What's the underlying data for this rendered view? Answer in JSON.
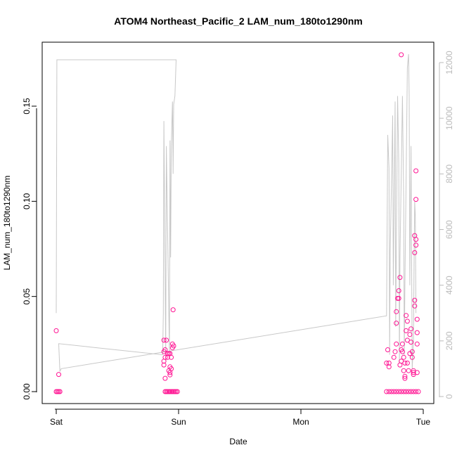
{
  "chart_data": {
    "type": "scatter",
    "title": "ATOM4 Northeast_Pacific_2 LAM_num_180to1290nm",
    "xlabel": "Date",
    "ylabel": "LAM_num_180to1290nm",
    "y2label": "",
    "x_ticks": [
      "Sat",
      "Sun",
      "Mon",
      "Tue"
    ],
    "x_tick_days": [
      0,
      1,
      2,
      3
    ],
    "xlim_days": [
      -0.15,
      3.1
    ],
    "y_ticks": [
      "0.00",
      "0.05",
      "0.10",
      "0.15"
    ],
    "y_tick_values": [
      0,
      0.05,
      0.1,
      0.15
    ],
    "ylim": [
      -0.002,
      0.182
    ],
    "y2_ticks": [
      "0",
      "2000",
      "4000",
      "6000",
      "8000",
      "10000",
      "12000"
    ],
    "y2_tick_values": [
      0,
      2000,
      4000,
      6000,
      8000,
      10000,
      12000
    ],
    "y2lim": [
      -120,
      12800
    ],
    "grid": false,
    "legend": "none",
    "colors": {
      "points": "#ff1493",
      "line": "#c8c8c8",
      "right_axis": "#bbbbbb"
    },
    "series": [
      {
        "axis": "left",
        "style": "points",
        "points": [
          [
            0.0,
            0.032
          ],
          [
            0.02,
            0.009
          ],
          [
            0.0,
            0.0
          ],
          [
            0.01,
            0.0
          ],
          [
            0.02,
            0.0
          ],
          [
            0.03,
            0.0
          ],
          [
            0.88,
            0.027
          ],
          [
            0.88,
            0.021
          ],
          [
            0.89,
            0.022
          ],
          [
            0.9,
            0.027
          ],
          [
            0.89,
            0.018
          ],
          [
            0.88,
            0.016
          ],
          [
            0.88,
            0.014
          ],
          [
            0.89,
            0.0
          ],
          [
            0.89,
            0.007
          ],
          [
            0.91,
            0.02
          ],
          [
            0.92,
            0.02
          ],
          [
            0.91,
            0.018
          ],
          [
            0.93,
            0.013
          ],
          [
            0.92,
            0.011
          ],
          [
            0.93,
            0.01
          ],
          [
            0.94,
            0.012
          ],
          [
            0.95,
            0.025
          ],
          [
            0.95,
            0.023
          ],
          [
            0.96,
            0.024
          ],
          [
            0.93,
            0.02
          ],
          [
            0.94,
            0.018
          ],
          [
            0.93,
            0.0088
          ],
          [
            0.955,
            0.043
          ],
          [
            0.9,
            0.0
          ],
          [
            0.91,
            0.0
          ],
          [
            0.92,
            0.0
          ],
          [
            0.93,
            0.0
          ],
          [
            0.94,
            0.0
          ],
          [
            0.95,
            0.0
          ],
          [
            0.96,
            0.0
          ],
          [
            0.97,
            0.0
          ],
          [
            0.98,
            0.0
          ],
          [
            0.99,
            0.0
          ],
          [
            2.7,
            0.015
          ],
          [
            2.71,
            0.022
          ],
          [
            2.72,
            0.015
          ],
          [
            2.72,
            0.013
          ],
          [
            2.76,
            0.018
          ],
          [
            2.77,
            0.021
          ],
          [
            2.78,
            0.025
          ],
          [
            2.78,
            0.036
          ],
          [
            2.78,
            0.042
          ],
          [
            2.79,
            0.049
          ],
          [
            2.8,
            0.049
          ],
          [
            2.8,
            0.053
          ],
          [
            2.81,
            0.06
          ],
          [
            2.81,
            0.014
          ],
          [
            2.82,
            0.016
          ],
          [
            2.82,
            0.022
          ],
          [
            2.83,
            0.025
          ],
          [
            2.83,
            0.021
          ],
          [
            2.84,
            0.018
          ],
          [
            2.84,
            0.011
          ],
          [
            2.85,
            0.008
          ],
          [
            2.85,
            0.007
          ],
          [
            2.85,
            0.015
          ],
          [
            2.86,
            0.04
          ],
          [
            2.86,
            0.032
          ],
          [
            2.87,
            0.027
          ],
          [
            2.87,
            0.037
          ],
          [
            2.87,
            0.015
          ],
          [
            2.88,
            0.011
          ],
          [
            2.89,
            0.02
          ],
          [
            2.89,
            0.03
          ],
          [
            2.9,
            0.033
          ],
          [
            2.9,
            0.026
          ],
          [
            2.91,
            0.021
          ],
          [
            2.91,
            0.018
          ],
          [
            2.92,
            0.011
          ],
          [
            2.92,
            0.009
          ],
          [
            2.92,
            0.01
          ],
          [
            2.93,
            0.048
          ],
          [
            2.93,
            0.045
          ],
          [
            2.93,
            0.073
          ],
          [
            2.94,
            0.077
          ],
          [
            2.94,
            0.08
          ],
          [
            2.93,
            0.082
          ],
          [
            2.94,
            0.101
          ],
          [
            2.94,
            0.116
          ],
          [
            2.95,
            0.038
          ],
          [
            2.95,
            0.031
          ],
          [
            2.95,
            0.025
          ],
          [
            2.95,
            0.01
          ],
          [
            2.82,
            0.177
          ],
          [
            2.7,
            0.0
          ],
          [
            2.72,
            0.0
          ],
          [
            2.74,
            0.0
          ],
          [
            2.76,
            0.0
          ],
          [
            2.78,
            0.0
          ],
          [
            2.8,
            0.0
          ],
          [
            2.82,
            0.0
          ],
          [
            2.84,
            0.0
          ],
          [
            2.86,
            0.0
          ],
          [
            2.88,
            0.0
          ],
          [
            2.9,
            0.0
          ],
          [
            2.92,
            0.0
          ],
          [
            2.94,
            0.0
          ],
          [
            2.96,
            0.0
          ]
        ]
      },
      {
        "axis": "right",
        "style": "line",
        "points": [
          [
            0.0,
            3000
          ],
          [
            0.005,
            12100
          ],
          [
            0.98,
            12100
          ],
          [
            0.97,
            10800
          ],
          [
            0.96,
            10500
          ],
          [
            0.955,
            8000
          ],
          [
            0.95,
            10600
          ],
          [
            0.94,
            9000
          ],
          [
            0.935,
            5000
          ],
          [
            0.93,
            9200
          ],
          [
            0.925,
            1500
          ],
          [
            0.9,
            9000
          ],
          [
            0.895,
            1500
          ],
          [
            0.88,
            9900
          ],
          [
            0.875,
            3000
          ],
          [
            0.87,
            1500
          ],
          [
            0.02,
            1900
          ],
          [
            0.03,
            900
          ],
          [
            0.04,
            1000
          ],
          [
            2.7,
            2900
          ],
          [
            2.71,
            9400
          ],
          [
            2.72,
            8200
          ],
          [
            2.725,
            1500
          ],
          [
            2.73,
            5200
          ],
          [
            2.75,
            10100
          ],
          [
            2.755,
            4000
          ],
          [
            2.77,
            10600
          ],
          [
            2.775,
            2500
          ],
          [
            2.79,
            10800
          ],
          [
            2.8,
            8400
          ],
          [
            2.805,
            1200
          ],
          [
            2.81,
            5000
          ],
          [
            2.83,
            10800
          ],
          [
            2.84,
            7000
          ],
          [
            2.845,
            1500
          ],
          [
            2.85,
            4000
          ],
          [
            2.87,
            11800
          ],
          [
            2.88,
            12300
          ],
          [
            2.885,
            10800
          ],
          [
            2.89,
            4000
          ],
          [
            2.9,
            9000
          ],
          [
            2.91,
            1000
          ],
          [
            2.92,
            2000
          ],
          [
            2.925,
            5000
          ],
          [
            2.93,
            7000
          ],
          [
            2.935,
            6500
          ],
          [
            2.94,
            3000
          ]
        ]
      }
    ]
  }
}
